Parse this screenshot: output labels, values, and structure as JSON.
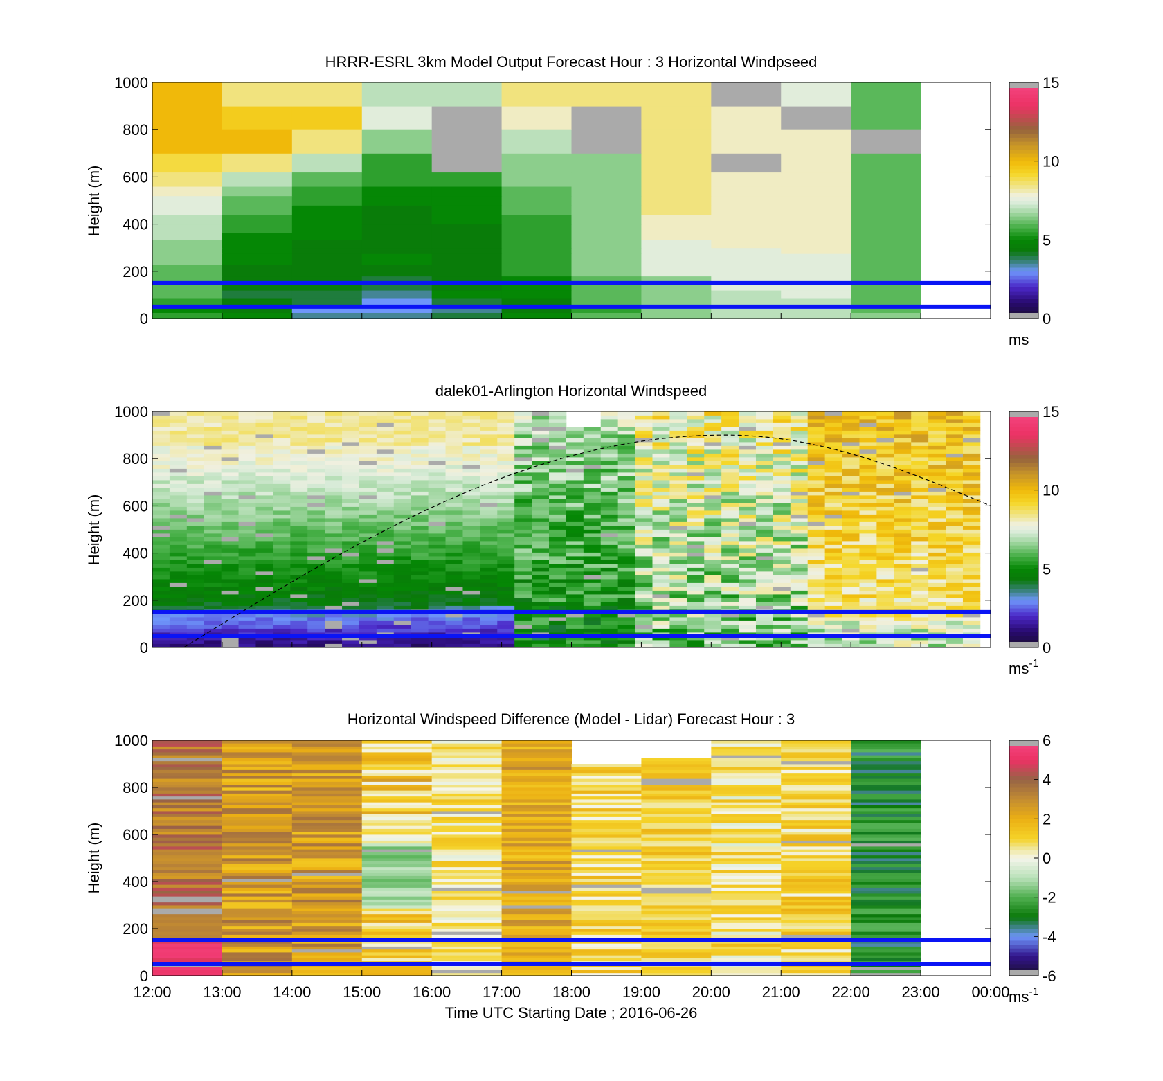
{
  "chart_data": {
    "type": "heatmap",
    "shared_x": {
      "xlabel": "Time UTC  Starting Date ; 2016-06-26",
      "tick_labels": [
        "12:00",
        "13:00",
        "14:00",
        "15:00",
        "16:00",
        "17:00",
        "18:00",
        "19:00",
        "20:00",
        "21:00",
        "22:00",
        "23:00",
        "00:00"
      ],
      "xlim_hours": [
        12,
        24
      ]
    },
    "panels": [
      {
        "id": "model",
        "title": "HRRR-ESRL 3km Model Output   Forecast Hour : 3 Horizontal Windpseed",
        "ylabel": "Height (m)",
        "ylim": [
          0,
          1000
        ],
        "yticks": [
          "0",
          "200",
          "400",
          "600",
          "800",
          "1000"
        ],
        "colorbar": {
          "ticks": [
            "0",
            "5",
            "10",
            "15"
          ],
          "range": [
            0,
            15
          ],
          "unit": "ms",
          "unit_sup": ""
        },
        "heights": [
          0,
          25,
          55,
          85,
          120,
          180,
          230,
          275,
          300,
          335,
          365,
          400,
          440,
          480,
          520,
          560,
          620,
          700,
          800,
          900,
          1000
        ],
        "hours": [
          12,
          13,
          14,
          15,
          16,
          17,
          18,
          19,
          20,
          21,
          22
        ],
        "values": [
          [
            5.5,
            5,
            3.5,
            3.5,
            4,
            5,
            6,
            6.5,
            7,
            7,
            6.5
          ],
          [
            5,
            4.5,
            3,
            3,
            3.5,
            4.5,
            5.5,
            6.5,
            7,
            7,
            6
          ],
          [
            5.5,
            4.5,
            4,
            3,
            4,
            4.5,
            6,
            6.5,
            7,
            7,
            6
          ],
          [
            6,
            4,
            4,
            3.5,
            5,
            5,
            6,
            6.5,
            7,
            7.5,
            6
          ],
          [
            6,
            4.5,
            4.5,
            4,
            4.5,
            5,
            6,
            6.5,
            7.5,
            7.5,
            6
          ],
          [
            6,
            4.5,
            4.5,
            4.5,
            4.5,
            5.5,
            6.5,
            7.5,
            7.5,
            7.5,
            6
          ],
          [
            6.5,
            5,
            4.5,
            5,
            4.5,
            5.5,
            6.5,
            7.5,
            7.5,
            7.5,
            6
          ],
          [
            6.5,
            5,
            4.5,
            4.5,
            4.5,
            5.5,
            6.5,
            7.5,
            7.5,
            8,
            6
          ],
          [
            6.5,
            5,
            4.5,
            4.5,
            4.5,
            5.5,
            6.5,
            7.5,
            8,
            8,
            6
          ],
          [
            7,
            5,
            5,
            4.5,
            4.5,
            5.5,
            6.5,
            8,
            8,
            8,
            6
          ],
          [
            7,
            5.5,
            5,
            4.5,
            4.5,
            5.5,
            6.5,
            8,
            8,
            8,
            6
          ],
          [
            7,
            5.5,
            5,
            4.5,
            5,
            5.5,
            6.5,
            8,
            8,
            8,
            6
          ],
          [
            7.5,
            6,
            5,
            4.5,
            5,
            6,
            6.5,
            8.5,
            8,
            8,
            6
          ],
          [
            7.5,
            6,
            5.5,
            5,
            5,
            6,
            6.5,
            8.5,
            8,
            8,
            6
          ],
          [
            8,
            6.5,
            5.5,
            5,
            5,
            6,
            6.5,
            8.5,
            8,
            8,
            6
          ],
          [
            8.5,
            7,
            6,
            5.5,
            5.5,
            6.5,
            6.5,
            8.5,
            8,
            8,
            6
          ],
          [
            9,
            8.5,
            7,
            5.5,
            6,
            6.5,
            6.5,
            8.5,
            8,
            8,
            6
          ],
          [
            10,
            10,
            8.5,
            6.5,
            null,
            7,
            7,
            8.5,
            8,
            8,
            6
          ],
          [
            10,
            9.5,
            9.5,
            7.5,
            null,
            8,
            null,
            8.5,
            8,
            null,
            6
          ],
          [
            10,
            8.5,
            8.5,
            7,
            7,
            8.5,
            8.5,
            8.5,
            null,
            7.5,
            6
          ],
          [
            10,
            8,
            8,
            7,
            7,
            8.5,
            8.5,
            8.5,
            7,
            7,
            6
          ]
        ],
        "gray_cells": [
          [
            16,
            17,
            4
          ],
          [
            16,
            17,
            8
          ],
          [
            16,
            17,
            11
          ],
          [
            16,
            18,
            4
          ],
          [
            17,
            20,
            6
          ],
          [
            17,
            19,
            10
          ]
        ],
        "bars": []
      },
      {
        "id": "lidar",
        "title": "dalek01-Arlington  Horizontal Windspeed",
        "ylabel": "Height (m)",
        "ylim": [
          0,
          1000
        ],
        "yticks": [
          "0",
          "200",
          "400",
          "600",
          "800",
          "1000"
        ],
        "colorbar": {
          "ticks": [
            "0",
            "5",
            "10",
            "15"
          ],
          "range": [
            0,
            15
          ],
          "unit": "ms",
          "unit_sup": "-1"
        },
        "time_start": 12,
        "time_end": 23.85,
        "n_time": 48,
        "n_height": 62,
        "bars": [],
        "sun_curve": {
          "t_start": 12.45,
          "t_peak": 20.2,
          "t_end": 24,
          "y_start": 0,
          "y_peak": 900,
          "y_end": 600
        }
      },
      {
        "id": "diff",
        "title": "Horizontal Windspeed Difference (Model - Lidar) Forecast Hour : 3",
        "ylabel": "Height (m)",
        "ylim": [
          0,
          1000
        ],
        "yticks": [
          "0",
          "200",
          "400",
          "600",
          "800",
          "1000"
        ],
        "colorbar": {
          "ticks": [
            "-6",
            "-4",
            "-2",
            "0",
            "2",
            "4",
            "6"
          ],
          "range": [
            -6,
            6
          ],
          "unit": "ms",
          "unit_sup": "-1"
        },
        "hours": [
          12,
          13,
          14,
          15,
          16,
          17,
          18,
          19,
          20,
          21,
          22
        ],
        "col_top": [
          1000,
          1000,
          1000,
          1000,
          1000,
          1000,
          900,
          925,
          1000,
          1000,
          1000
        ],
        "col_base": [
          3.5,
          2.5,
          2.5,
          1.2,
          0.6,
          2.2,
          0.9,
          1.1,
          0.6,
          0.9,
          -2.8
        ],
        "col_amp": [
          1.0,
          1.2,
          1.2,
          1.4,
          0.9,
          1.0,
          1.0,
          0.8,
          1.1,
          1.1,
          0.9
        ],
        "gap_ranges": [
          [
            21,
            840,
            890
          ],
          [
            22,
            370,
            385
          ]
        ],
        "bars": []
      }
    ],
    "reference_lines_m": [
      50,
      150
    ],
    "colors": {
      "blue_line": "#0a14f5",
      "dashed_curve": "#000000",
      "missing": "#aaaaaa"
    }
  }
}
